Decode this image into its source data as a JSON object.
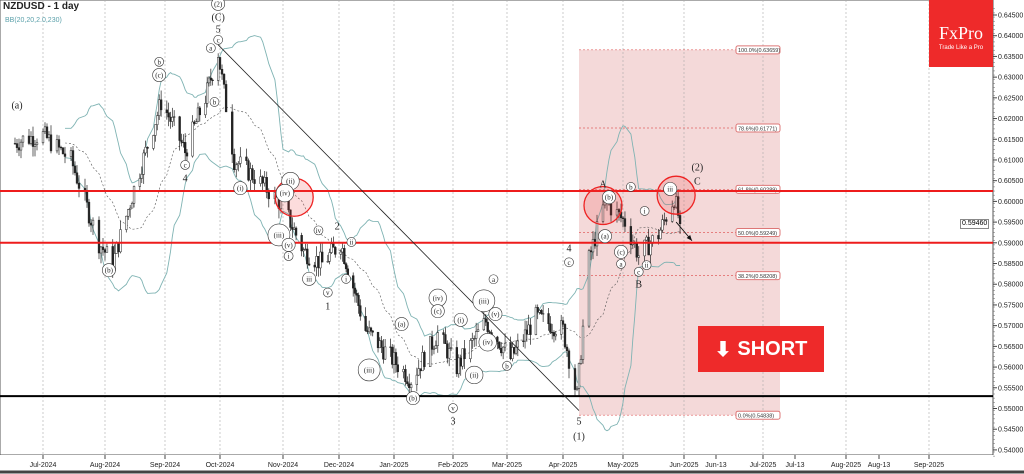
{
  "header": {
    "symbol_title": "NZDUSD - 1 day",
    "indicator": "BB(20,20,2.0,230)"
  },
  "logo": {
    "brand": "FxPro",
    "tagline": "Trade Like a Pro"
  },
  "signal": {
    "label": "SHORT",
    "icon": "arrow-down-icon",
    "color": "#ee2a2a"
  },
  "chart_data": {
    "type": "candlestick",
    "title": "NZDUSD - 1 day",
    "ylim": [
      0.538,
      0.6475
    ],
    "y_ticks": [
      "0.64500",
      "0.64000",
      "0.63500",
      "0.63000",
      "0.62500",
      "0.62000",
      "0.61500",
      "0.61000",
      "0.60500",
      "0.60000",
      "0.59500",
      "0.59000",
      "0.58500",
      "0.58000",
      "0.57500",
      "0.57000",
      "0.56500",
      "0.56000",
      "0.55500",
      "0.55000",
      "0.54500",
      "0.54000"
    ],
    "x_ticks": [
      {
        "label": "Jul-2024",
        "date": "2024-07-01"
      },
      {
        "label": "Aug-2024",
        "date": "2024-08-01"
      },
      {
        "label": "Sep-2024",
        "date": "2024-09-01"
      },
      {
        "label": "Oct-2024",
        "date": "2024-10-01"
      },
      {
        "label": "Nov-2024",
        "date": "2024-11-01"
      },
      {
        "label": "Dec-2024",
        "date": "2024-12-01"
      },
      {
        "label": "Jan-2025",
        "date": "2025-01-01"
      },
      {
        "label": "Feb-2025",
        "date": "2025-02-01"
      },
      {
        "label": "Mar-2025",
        "date": "2025-03-01"
      },
      {
        "label": "Apr-2025",
        "date": "2025-04-01"
      },
      {
        "label": "May-2025",
        "date": "2025-05-01"
      },
      {
        "label": "Jun-2025",
        "date": "2025-06-01"
      },
      {
        "label": "Jun-13",
        "date": "2025-06-13"
      },
      {
        "label": "Jul-2025",
        "date": "2025-07-01"
      },
      {
        "label": "Jul-13",
        "date": "2025-07-13"
      },
      {
        "label": "Aug-2025",
        "date": "2025-08-01"
      },
      {
        "label": "Aug-13",
        "date": "2025-08-13"
      },
      {
        "label": "Sep-2025",
        "date": "2025-09-01"
      }
    ],
    "current_price": "0.59460",
    "price_path": [
      [
        "2024-06-17",
        0.614
      ],
      [
        "2024-06-21",
        0.615
      ],
      [
        "2024-07-01",
        0.616
      ],
      [
        "2024-07-15",
        0.61
      ],
      [
        "2024-07-29",
        0.59
      ],
      [
        "2024-08-05",
        0.585
      ],
      [
        "2024-08-16",
        0.603
      ],
      [
        "2024-08-30",
        0.624
      ],
      [
        "2024-09-06",
        0.618
      ],
      [
        "2024-09-12",
        0.612
      ],
      [
        "2024-09-23",
        0.625
      ],
      [
        "2024-09-30",
        0.636
      ],
      [
        "2024-10-08",
        0.61
      ],
      [
        "2024-10-18",
        0.606
      ],
      [
        "2024-11-01",
        0.599
      ],
      [
        "2024-11-12",
        0.588
      ],
      [
        "2024-11-22",
        0.585
      ],
      [
        "2024-12-02",
        0.59
      ],
      [
        "2024-12-16",
        0.569
      ],
      [
        "2024-12-31",
        0.562
      ],
      [
        "2025-01-10",
        0.557
      ],
      [
        "2025-01-24",
        0.568
      ],
      [
        "2025-02-03",
        0.56
      ],
      [
        "2025-02-18",
        0.571
      ],
      [
        "2025-03-03",
        0.562
      ],
      [
        "2025-03-17",
        0.572
      ],
      [
        "2025-04-01",
        0.569
      ],
      [
        "2025-04-08",
        0.553
      ],
      [
        "2025-04-14",
        0.586
      ],
      [
        "2025-04-22",
        0.6
      ],
      [
        "2025-05-02",
        0.595
      ],
      [
        "2025-05-09",
        0.587
      ],
      [
        "2025-05-19",
        0.592
      ],
      [
        "2025-05-27",
        0.601
      ],
      [
        "2025-05-30",
        0.5946
      ]
    ],
    "horizontal_levels": [
      {
        "price": 0.6025,
        "color": "#ee1c1c"
      },
      {
        "price": 0.59,
        "color": "#ee1c1c"
      },
      {
        "price": 0.553,
        "color": "#000000"
      }
    ],
    "trendline": [
      [
        "2024-09-30",
        0.6378
      ],
      [
        "2025-04-09",
        0.5495
      ]
    ],
    "fibonacci": {
      "from_date": "2025-04-09",
      "to_date": "2025-07-01",
      "levels": [
        {
          "label": "100.0%(0.63659)",
          "price": 0.63659
        },
        {
          "label": "78.6%(0.61771)",
          "price": 0.61771
        },
        {
          "label": "61.8%(0.60289)",
          "price": 0.60289
        },
        {
          "label": "50.0%(0.59249)",
          "price": 0.59249
        },
        {
          "label": "38.2%(0.58208)",
          "price": 0.58208
        },
        {
          "label": "0.0%(0.54838)",
          "price": 0.54838
        }
      ]
    },
    "highlight_circles": [
      [
        "2024-11-07",
        0.601
      ],
      [
        "2025-04-21",
        0.599
      ],
      [
        "2025-05-28",
        0.6015
      ]
    ],
    "projection_arrow": [
      [
        "2025-05-28",
        0.595
      ],
      [
        "2025-06-04",
        0.5905
      ]
    ],
    "wave_labels": [
      {
        "t": "(a)",
        "d": "2024-06-18",
        "p": 0.6233,
        "c": 0
      },
      {
        "t": "(b)",
        "d": "2024-08-03",
        "p": 0.5834,
        "c": 1
      },
      {
        "t": "b",
        "d": "2024-08-29",
        "p": 0.6337,
        "c": 1
      },
      {
        "t": "(c)",
        "d": "2024-08-29",
        "p": 0.6305,
        "c": 1
      },
      {
        "t": "c",
        "d": "2024-09-12",
        "p": 0.6088,
        "c": 1
      },
      {
        "t": "4",
        "d": "2024-09-12",
        "p": 0.6056,
        "c": 0
      },
      {
        "t": "(2)",
        "d": "2024-09-30",
        "p": 0.6477,
        "c": 1
      },
      {
        "t": "(C)",
        "d": "2024-09-30",
        "p": 0.6445,
        "c": 0
      },
      {
        "t": "5",
        "d": "2024-09-30",
        "p": 0.6416,
        "c": 0
      },
      {
        "t": "c",
        "d": "2024-09-30",
        "p": 0.639,
        "c": 1
      },
      {
        "t": "a",
        "d": "2024-09-26",
        "p": 0.637,
        "c": 1
      },
      {
        "t": "b",
        "d": "2024-09-28",
        "p": 0.624,
        "c": 1
      },
      {
        "t": "(i)",
        "d": "2024-10-11",
        "p": 0.6032,
        "c": 1
      },
      {
        "t": "(ii)",
        "d": "2024-11-05",
        "p": 0.6049,
        "c": 1
      },
      {
        "t": "(iv)",
        "d": "2024-11-02",
        "p": 0.602,
        "c": 1
      },
      {
        "t": "(iii)",
        "d": "2024-10-30",
        "p": 0.5919,
        "c": 1
      },
      {
        "t": "(v)",
        "d": "2024-11-04",
        "p": 0.5895,
        "c": 1
      },
      {
        "t": "i",
        "d": "2024-11-04",
        "p": 0.5868,
        "c": 1
      },
      {
        "t": "iii",
        "d": "2024-11-15",
        "p": 0.5813,
        "c": 1
      },
      {
        "t": "iv",
        "d": "2024-11-20",
        "p": 0.593,
        "c": 1
      },
      {
        "t": "v",
        "d": "2024-11-25",
        "p": 0.578,
        "c": 1
      },
      {
        "t": "1",
        "d": "2024-11-25",
        "p": 0.5748,
        "c": 0
      },
      {
        "t": "2",
        "d": "2024-11-30",
        "p": 0.594,
        "c": 0
      },
      {
        "t": "ii",
        "d": "2024-12-08",
        "p": 0.5902,
        "c": 1
      },
      {
        "t": "i",
        "d": "2024-12-05",
        "p": 0.5813,
        "c": 1
      },
      {
        "t": "(iii)",
        "d": "2024-12-18",
        "p": 0.5593,
        "c": 1
      },
      {
        "t": "(a)",
        "d": "2025-01-05",
        "p": 0.5704,
        "c": 1
      },
      {
        "t": "(b)",
        "d": "2025-01-11",
        "p": 0.5525,
        "c": 1
      },
      {
        "t": "(iv)",
        "d": "2025-01-24",
        "p": 0.5767,
        "c": 1
      },
      {
        "t": "(c)",
        "d": "2025-01-24",
        "p": 0.5735,
        "c": 1
      },
      {
        "t": "v",
        "d": "2025-02-01",
        "p": 0.5501,
        "c": 1
      },
      {
        "t": "3",
        "d": "2025-02-01",
        "p": 0.547,
        "c": 0
      },
      {
        "t": "(i)",
        "d": "2025-02-05",
        "p": 0.5714,
        "c": 1
      },
      {
        "t": "(ii)",
        "d": "2025-02-12",
        "p": 0.5581,
        "c": 1
      },
      {
        "t": "(iii)",
        "d": "2025-02-17",
        "p": 0.576,
        "c": 1
      },
      {
        "t": "a",
        "d": "2025-02-22",
        "p": 0.5812,
        "c": 1
      },
      {
        "t": "(iv)",
        "d": "2025-02-19",
        "p": 0.566,
        "c": 1
      },
      {
        "t": "(v)",
        "d": "2025-02-23",
        "p": 0.5728,
        "c": 1
      },
      {
        "t": "b",
        "d": "2025-03-01",
        "p": 0.5603,
        "c": 1
      },
      {
        "t": "c",
        "d": "2025-04-04",
        "p": 0.5853,
        "c": 1
      },
      {
        "t": "4",
        "d": "2025-04-04",
        "p": 0.5887,
        "c": 0
      },
      {
        "t": "5",
        "d": "2025-04-09",
        "p": 0.547,
        "c": 0
      },
      {
        "t": "(1)",
        "d": "2025-04-09",
        "p": 0.5434,
        "c": 0
      },
      {
        "t": "A",
        "d": "2025-04-21",
        "p": 0.6042,
        "c": 0
      },
      {
        "t": "(b)",
        "d": "2025-04-24",
        "p": 0.601,
        "c": 1
      },
      {
        "t": "(a)",
        "d": "2025-04-22",
        "p": 0.5916,
        "c": 1
      },
      {
        "t": "(c)",
        "d": "2025-04-30",
        "p": 0.5878,
        "c": 1
      },
      {
        "t": "a",
        "d": "2025-04-30",
        "p": 0.5849,
        "c": 1
      },
      {
        "t": "b",
        "d": "2025-05-05",
        "p": 0.6035,
        "c": 1
      },
      {
        "t": "i",
        "d": "2025-05-12",
        "p": 0.5977,
        "c": 1
      },
      {
        "t": "c",
        "d": "2025-05-09",
        "p": 0.583,
        "c": 1
      },
      {
        "t": "B",
        "d": "2025-05-09",
        "p": 0.58,
        "c": 0
      },
      {
        "t": "ii",
        "d": "2025-05-13",
        "p": 0.5846,
        "c": 1
      },
      {
        "t": "iii",
        "d": "2025-05-25",
        "p": 0.603,
        "c": 1
      },
      {
        "t": "(2)",
        "d": "2025-06-06",
        "p": 0.6083,
        "c": 0
      },
      {
        "t": "C",
        "d": "2025-06-06",
        "p": 0.6049,
        "c": 0
      }
    ]
  }
}
